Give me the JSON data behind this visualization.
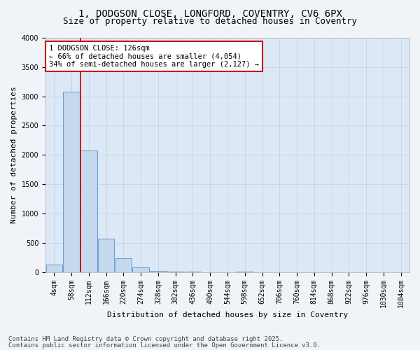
{
  "title_line1": "1, DODGSON CLOSE, LONGFORD, COVENTRY, CV6 6PX",
  "title_line2": "Size of property relative to detached houses in Coventry",
  "xlabel": "Distribution of detached houses by size in Coventry",
  "ylabel": "Number of detached properties",
  "categories": [
    "4sqm",
    "58sqm",
    "112sqm",
    "166sqm",
    "220sqm",
    "274sqm",
    "328sqm",
    "382sqm",
    "436sqm",
    "490sqm",
    "544sqm",
    "598sqm",
    "652sqm",
    "706sqm",
    "760sqm",
    "814sqm",
    "868sqm",
    "922sqm",
    "976sqm",
    "1030sqm",
    "1084sqm"
  ],
  "bar_values": [
    130,
    3080,
    2080,
    570,
    230,
    75,
    20,
    5,
    2,
    0,
    0,
    2,
    0,
    0,
    0,
    0,
    0,
    0,
    0,
    0,
    0
  ],
  "bar_color": "#c5d8ee",
  "bar_edge_color": "#5a8fc2",
  "grid_color": "#c8d8e8",
  "background_color": "#dce8f5",
  "fig_background_color": "#f0f4f8",
  "vline_color": "#cc0000",
  "vline_x": 1.5,
  "annotation_text": "1 DODGSON CLOSE: 126sqm\n← 66% of detached houses are smaller (4,054)\n34% of semi-detached houses are larger (2,127) →",
  "annotation_box_color": "#cc0000",
  "ylim": [
    0,
    4000
  ],
  "yticks": [
    0,
    500,
    1000,
    1500,
    2000,
    2500,
    3000,
    3500,
    4000
  ],
  "footer_line1": "Contains HM Land Registry data © Crown copyright and database right 2025.",
  "footer_line2": "Contains public sector information licensed under the Open Government Licence v3.0.",
  "title_fontsize": 10,
  "subtitle_fontsize": 9,
  "axis_label_fontsize": 8,
  "tick_fontsize": 7,
  "annotation_fontsize": 7.5,
  "footer_fontsize": 6.5
}
